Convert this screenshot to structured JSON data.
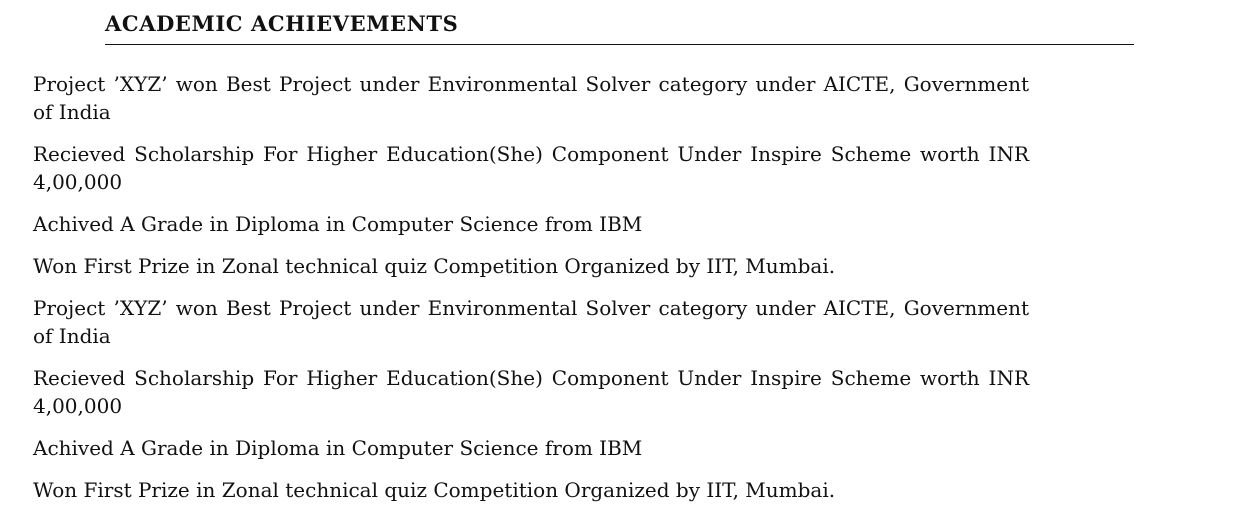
{
  "section": {
    "title": "ACADEMIC ACHIEVEMENTS",
    "items": [
      "Project ’XYZ’ won Best Project under Environmental Solver category under AICTE, Government of India",
      "Recieved Scholarship For Higher Education(She) Component Under Inspire Scheme worth INR 4,00,000",
      "Achived A Grade in Diploma in Computer Science from IBM",
      "Won First Prize in Zonal technical quiz Competition Organized by IIT, Mumbai.",
      "Project ’XYZ’ won Best Project under Environmental Solver category under AICTE, Government of India",
      "Recieved Scholarship For Higher Education(She) Component Under Inspire Scheme worth INR 4,00,000",
      "Achived A Grade in Diploma in Computer Science from IBM",
      "Won First Prize in Zonal technical quiz Competition Organized by IIT, Mumbai."
    ]
  }
}
